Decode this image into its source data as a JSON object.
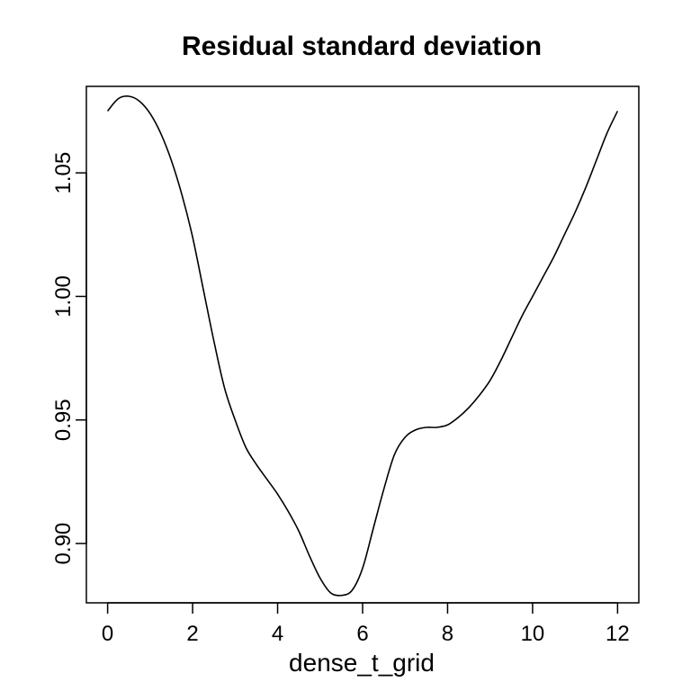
{
  "chart_data": {
    "type": "line",
    "title": "Residual standard deviation",
    "xlabel": "dense_t_grid",
    "ylabel": "",
    "xlim": [
      -0.5,
      12.5
    ],
    "ylim": [
      0.876,
      1.085
    ],
    "x_ticks": [
      0,
      2,
      4,
      6,
      8,
      10,
      12
    ],
    "x_tick_labels": [
      "0",
      "2",
      "4",
      "6",
      "8",
      "10",
      "12"
    ],
    "y_ticks": [
      0.9,
      0.95,
      1.0,
      1.05
    ],
    "y_tick_labels": [
      "0.90",
      "0.95",
      "1.00",
      "1.05"
    ],
    "grid": false,
    "legend": "none",
    "series": [
      {
        "color": "#000000",
        "x": [
          0,
          0.25,
          0.5,
          0.75,
          1.0,
          1.25,
          1.5,
          1.75,
          2.0,
          2.25,
          2.5,
          2.75,
          3.0,
          3.25,
          3.5,
          3.75,
          4.0,
          4.25,
          4.5,
          4.75,
          5.0,
          5.25,
          5.5,
          5.75,
          6.0,
          6.25,
          6.5,
          6.75,
          7.0,
          7.25,
          7.5,
          7.75,
          8.0,
          8.25,
          8.5,
          8.75,
          9.0,
          9.25,
          9.5,
          9.75,
          10.0,
          10.25,
          10.5,
          10.75,
          11.0,
          11.25,
          11.5,
          11.75,
          12.0
        ],
        "y": [
          1.075,
          1.08,
          1.081,
          1.079,
          1.074,
          1.066,
          1.055,
          1.041,
          1.024,
          1.003,
          0.982,
          0.963,
          0.95,
          0.939,
          0.932,
          0.926,
          0.92,
          0.913,
          0.905,
          0.895,
          0.886,
          0.88,
          0.879,
          0.881,
          0.89,
          0.906,
          0.922,
          0.936,
          0.943,
          0.946,
          0.947,
          0.947,
          0.948,
          0.951,
          0.955,
          0.96,
          0.966,
          0.974,
          0.983,
          0.992,
          1.0,
          1.008,
          1.016,
          1.025,
          1.034,
          1.044,
          1.055,
          1.066,
          1.075
        ]
      }
    ]
  }
}
